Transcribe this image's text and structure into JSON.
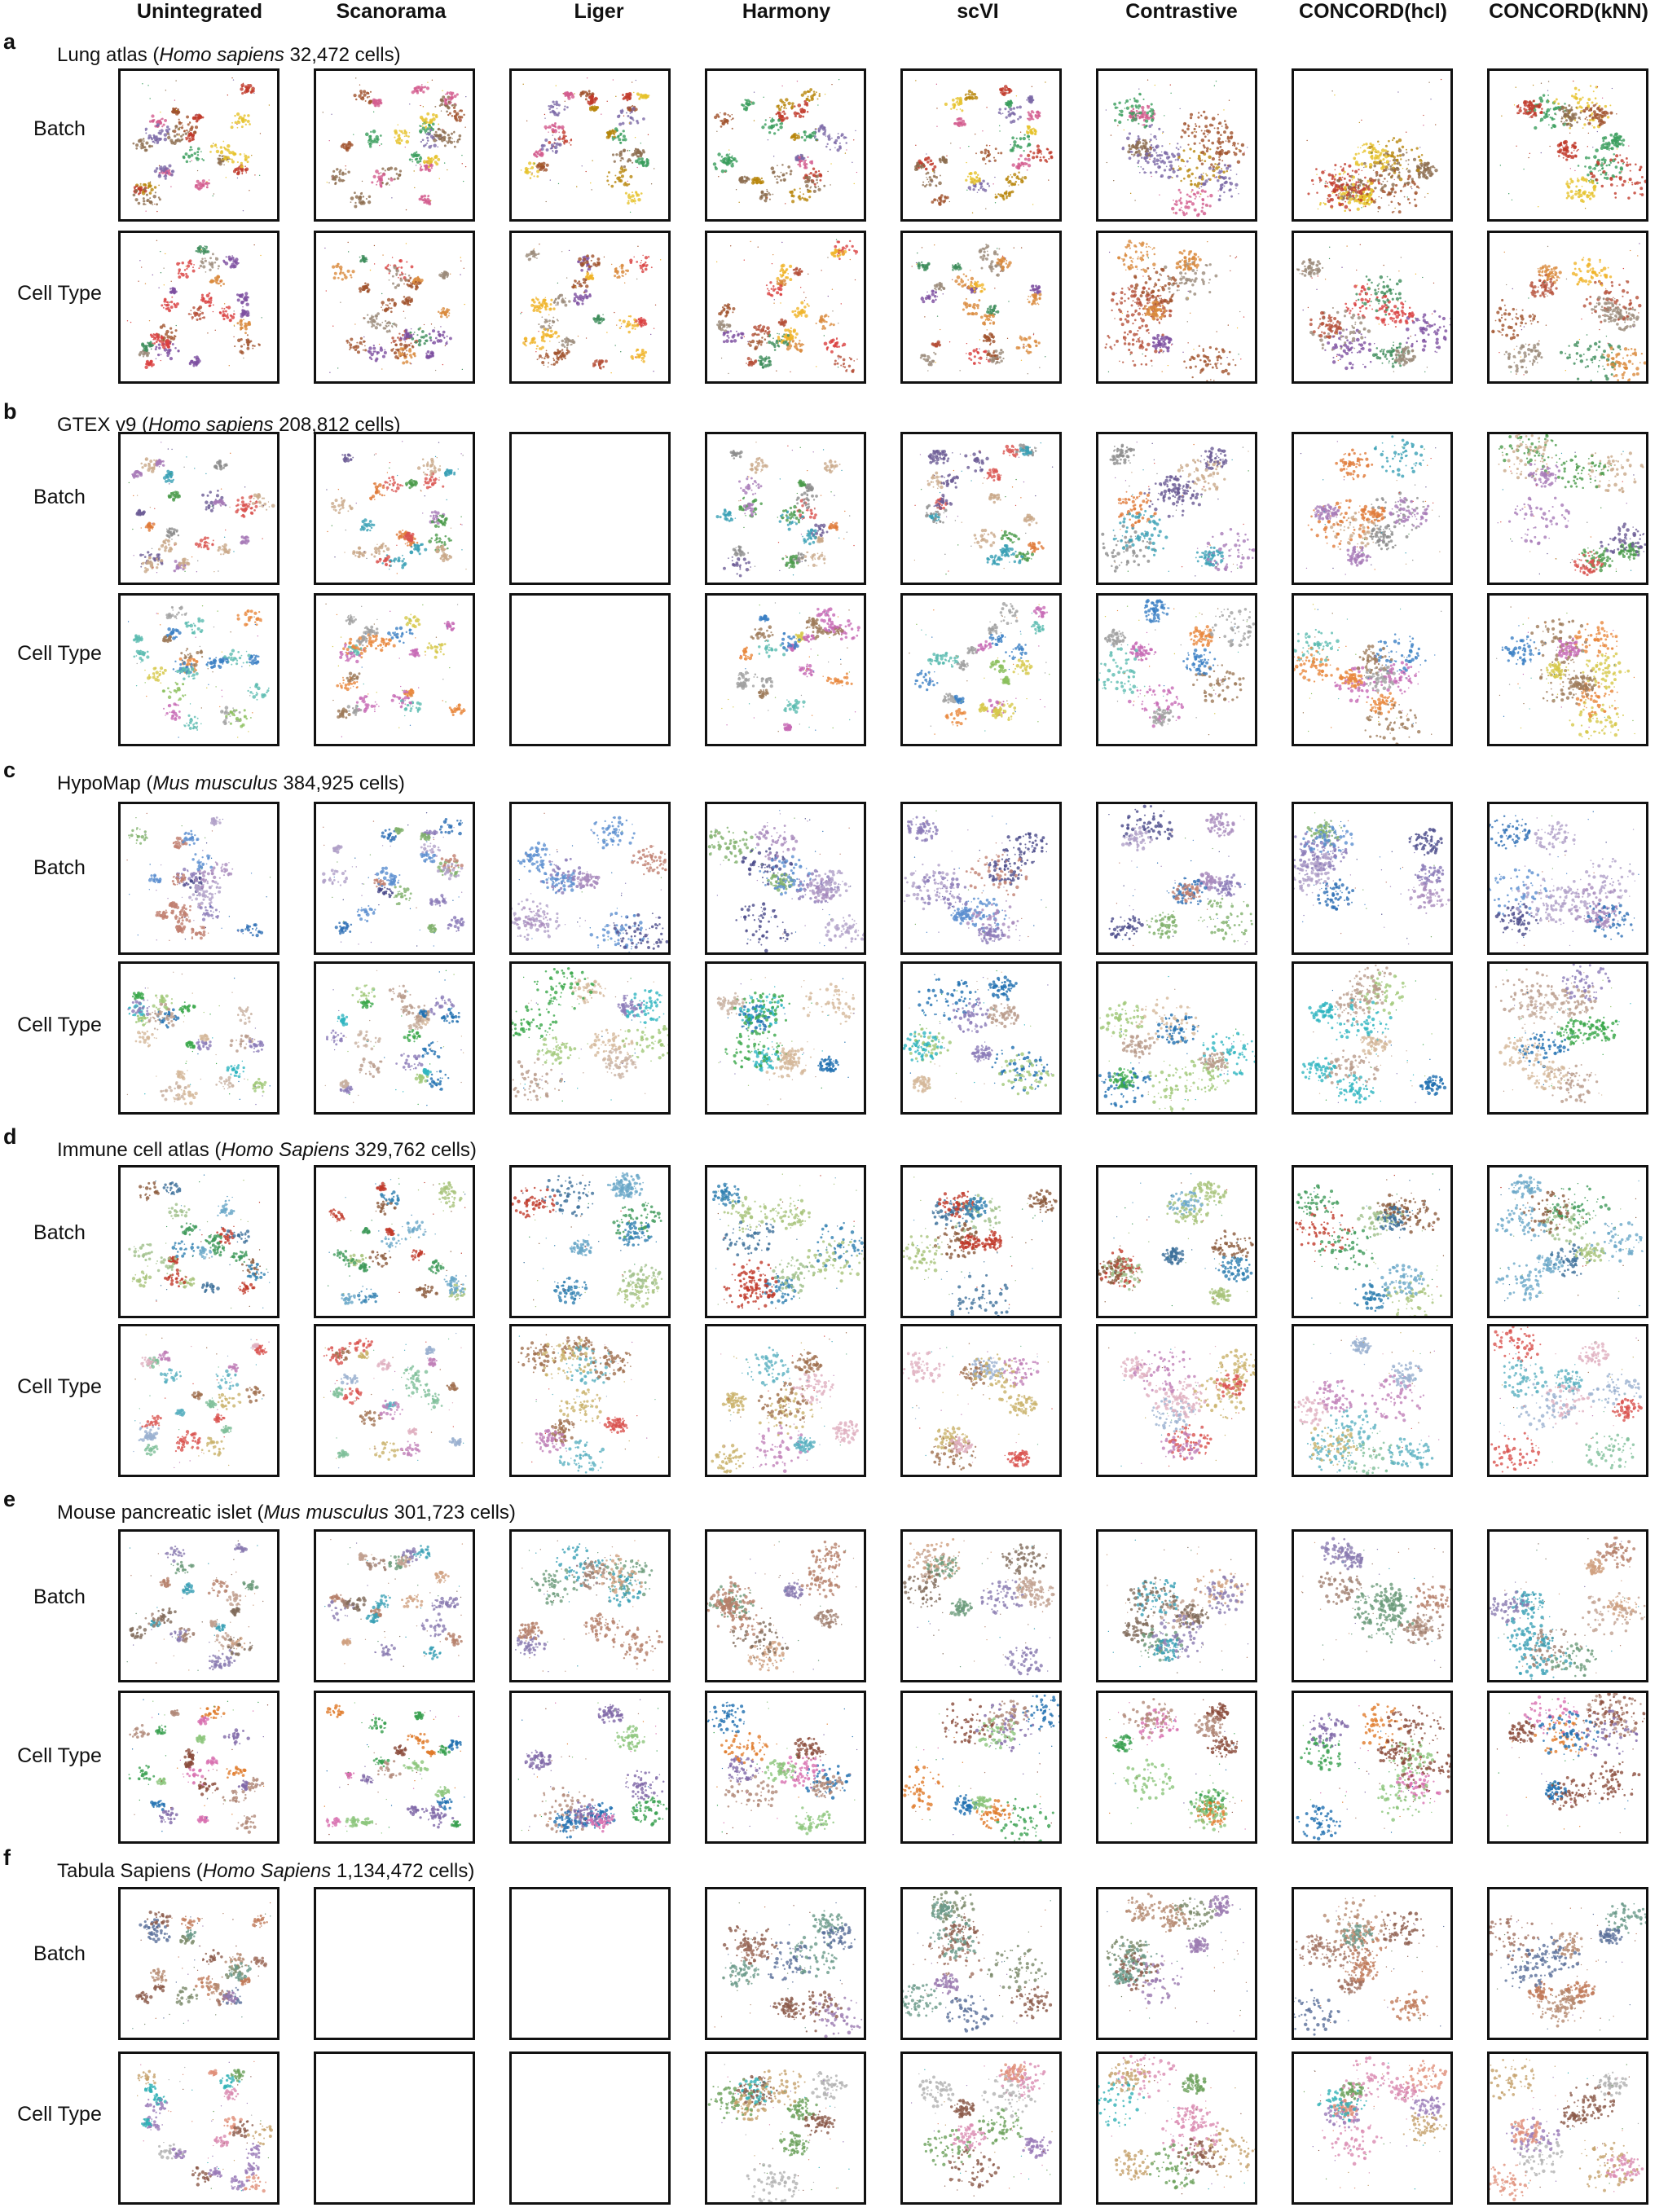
{
  "methods": [
    "Unintegrated",
    "Scanorama",
    "Liger",
    "Harmony",
    "scVI",
    "Contrastive",
    "CONCORD(hcl)",
    "CONCORD(kNN)"
  ],
  "row_labels": [
    "Batch",
    "Cell Type"
  ],
  "panels": [
    {
      "letter": "a",
      "title_prefix": "Lung atlas (",
      "species": "Homo sapiens",
      "title_suffix": " 32,472 cells)",
      "missing": [],
      "palette_batch": [
        "#8c6d4f",
        "#a0522d",
        "#e6c229",
        "#3a9d5d",
        "#c0392b",
        "#7b68a6",
        "#d35d8f",
        "#b8860b"
      ],
      "palette_type": [
        "#b5503a",
        "#f0b429",
        "#a0522d",
        "#7d4fa0",
        "#d94040",
        "#3c8c5a",
        "#d98a3c",
        "#9b8b7a"
      ]
    },
    {
      "letter": "b",
      "title_prefix": "GTEX v9 (",
      "species": "Homo sapiens",
      "title_suffix": " 208,812 cells)",
      "missing": [
        "Liger"
      ],
      "palette_batch": [
        "#8c8c8c",
        "#e07b39",
        "#3aa0b5",
        "#4b9b4b",
        "#a87ab8",
        "#c9a98a",
        "#6b5b95",
        "#d9534f"
      ],
      "palette_type": [
        "#e9873c",
        "#8bbf5c",
        "#3b7fc4",
        "#c76ab5",
        "#9e7b5a",
        "#5bbcb0",
        "#d6c84a",
        "#a0a0a0"
      ]
    },
    {
      "letter": "c",
      "title_prefix": "HypoMap (",
      "species": "Mus musculus",
      "title_suffix": " 384,925 cells)",
      "missing": [],
      "palette_batch": [
        "#8b7bb8",
        "#2e6fb5",
        "#b0a0c8",
        "#5b8fd0",
        "#a98bbd",
        "#4a4a8a",
        "#c08070",
        "#7fb06b"
      ],
      "palette_type": [
        "#b89a8a",
        "#1f6fb0",
        "#3aa84a",
        "#c8b0a0",
        "#2fb5c0",
        "#8b7bb8",
        "#a0c878",
        "#d4b89a"
      ]
    },
    {
      "letter": "d",
      "title_prefix": "Immune cell atlas (",
      "species": "Homo Sapiens",
      "title_suffix": " 329,762 cells)",
      "missing": [],
      "palette_batch": [
        "#2f7fb0",
        "#3f9a5a",
        "#8b5a3c",
        "#9fbf8a",
        "#c0392b",
        "#6aa7c8",
        "#3c6f9a",
        "#a8c37a"
      ],
      "palette_type": [
        "#c9b26a",
        "#9ab0d0",
        "#d9534f",
        "#c080b8",
        "#7fbf9a",
        "#e0b0c0",
        "#a07050",
        "#5ab0c0"
      ]
    },
    {
      "letter": "e",
      "title_prefix": "Mouse pancreatic islet (",
      "species": "Mus musculus",
      "title_suffix": " 301,723 cells)",
      "missing": [],
      "palette_batch": [
        "#a08070",
        "#c0a090",
        "#3aa0b5",
        "#8a7ab0",
        "#b5806a",
        "#6b9b7b",
        "#d0a080",
        "#7f6a5a"
      ],
      "palette_type": [
        "#8cc67c",
        "#8b4c3c",
        "#e07b2a",
        "#1f6fb0",
        "#d870b0",
        "#7f68a8",
        "#3aa050",
        "#b08878"
      ]
    },
    {
      "letter": "f",
      "title_prefix": "Tabula Sapiens (",
      "species": "Homo Sapiens",
      "title_suffix": " 1,134,472 cells)",
      "missing": [
        "Scanorama",
        "Liger"
      ],
      "palette_batch": [
        "#8b5a4a",
        "#a07060",
        "#7a8a6a",
        "#9b7bb0",
        "#c07a5a",
        "#6a9a8a",
        "#b58a70",
        "#5a6f9a"
      ],
      "palette_type": [
        "#8b5a4a",
        "#d98ab0",
        "#2fb0b5",
        "#c4a06a",
        "#9a7ab8",
        "#e0907a",
        "#6aa05a",
        "#b0b0b0"
      ]
    }
  ]
}
